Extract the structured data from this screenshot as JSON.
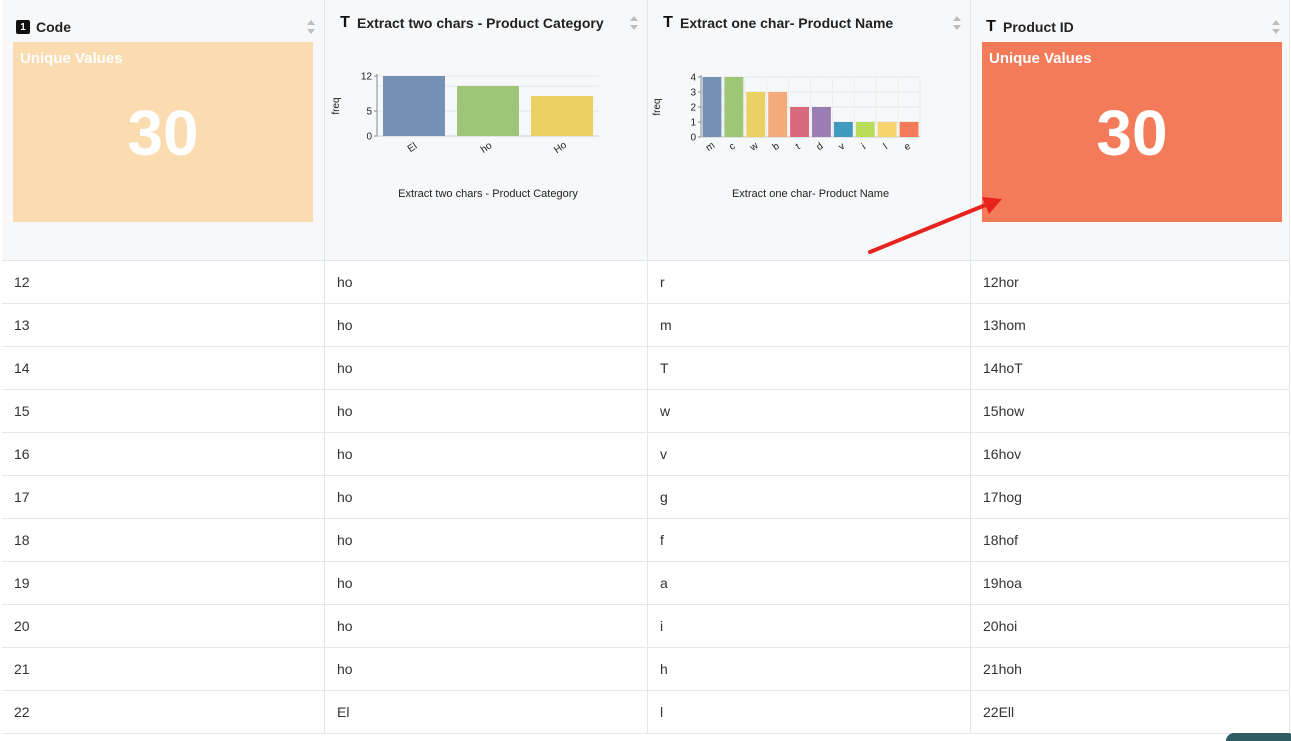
{
  "columns": [
    {
      "title": "Code",
      "type_icon": "number-type-icon",
      "type_glyph": "1"
    },
    {
      "title": "Extract two chars - Product Category",
      "type_icon": "text-type-icon",
      "type_glyph": "T"
    },
    {
      "title": "Extract one char- Product Name",
      "type_icon": "text-type-icon",
      "type_glyph": "T"
    },
    {
      "title": "Product ID",
      "type_icon": "text-type-icon",
      "type_glyph": "T"
    }
  ],
  "unique_cards": [
    {
      "label": "Unique Values",
      "value": "30",
      "color": "#fbdbb0"
    },
    {
      "label": "Unique Values",
      "value": "30",
      "color": "#f47b5a"
    }
  ],
  "chart_data": [
    {
      "type": "bar",
      "title": "",
      "xlabel": "Extract two chars - Product Category",
      "ylabel": "freq",
      "categories": [
        "El",
        "ho",
        "Ho"
      ],
      "values": [
        12,
        10,
        8
      ],
      "colors": [
        "#7591b5",
        "#9dc777",
        "#ead162"
      ],
      "ylim": [
        0,
        12
      ],
      "yticks": [
        0,
        5,
        12
      ],
      "grid": true
    },
    {
      "type": "bar",
      "title": "",
      "xlabel": "Extract one char- Product Name",
      "ylabel": "freq",
      "categories": [
        "m",
        "c",
        "w",
        "b",
        "t",
        "d",
        "v",
        "i",
        "l",
        "e"
      ],
      "values": [
        4,
        4,
        3,
        3,
        2,
        2,
        1,
        1,
        1,
        1
      ],
      "colors": [
        "#7591b5",
        "#9dc777",
        "#ead162",
        "#f4ab7b",
        "#d96a7d",
        "#9a7eb5",
        "#3f9cc0",
        "#b9dd5b",
        "#f7d46e",
        "#f47b5a"
      ],
      "ylim": [
        0,
        4
      ],
      "yticks": [
        0,
        1,
        2,
        3,
        4
      ],
      "grid": true
    }
  ],
  "rows": [
    {
      "code": "12",
      "cat": "ho",
      "name": "r",
      "pid": "12hor"
    },
    {
      "code": "13",
      "cat": "ho",
      "name": "m",
      "pid": "13hom"
    },
    {
      "code": "14",
      "cat": "ho",
      "name": "T",
      "pid": "14hoT"
    },
    {
      "code": "15",
      "cat": "ho",
      "name": "w",
      "pid": "15how"
    },
    {
      "code": "16",
      "cat": "ho",
      "name": "v",
      "pid": "16hov"
    },
    {
      "code": "17",
      "cat": "ho",
      "name": "g",
      "pid": "17hog"
    },
    {
      "code": "18",
      "cat": "ho",
      "name": "f",
      "pid": "18hof"
    },
    {
      "code": "19",
      "cat": "ho",
      "name": "a",
      "pid": "19hoa"
    },
    {
      "code": "20",
      "cat": "ho",
      "name": "i",
      "pid": "20hoi"
    },
    {
      "code": "21",
      "cat": "ho",
      "name": "h",
      "pid": "21hoh"
    },
    {
      "code": "22",
      "cat": "El",
      "name": "l",
      "pid": "22Ell"
    }
  ],
  "annotation": {
    "arrow_color": "#e8221d"
  }
}
